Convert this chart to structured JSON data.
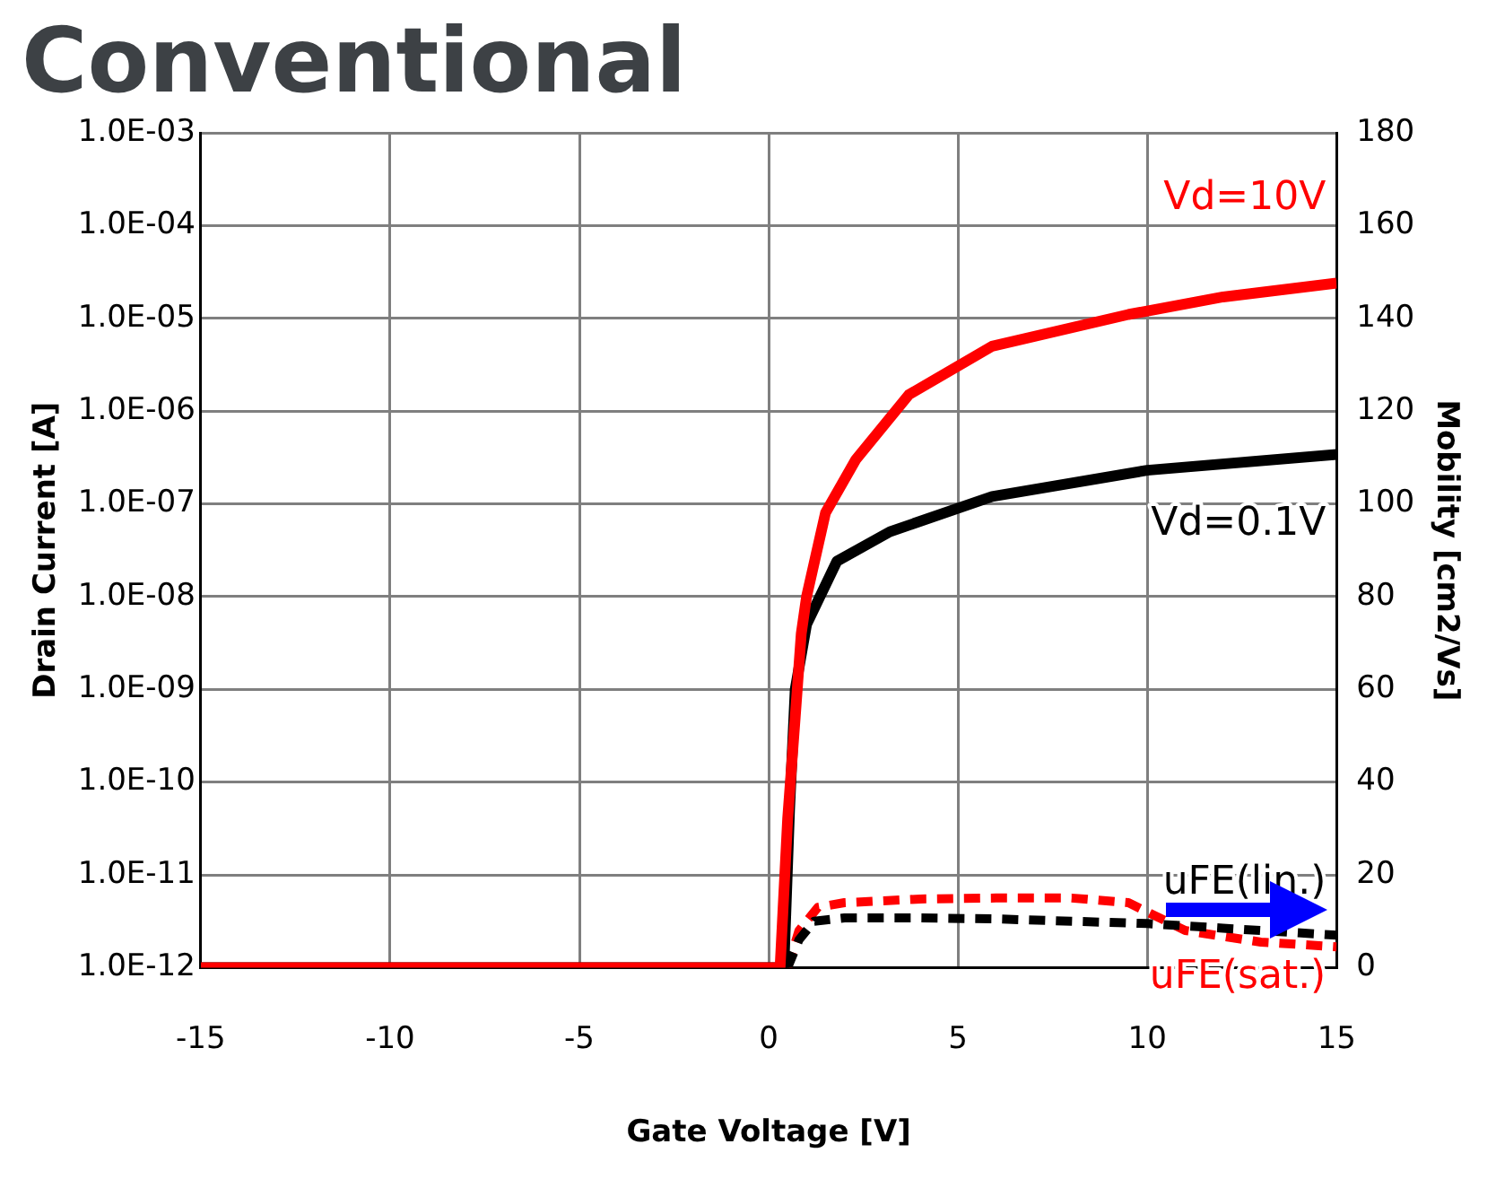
{
  "chart_data": {
    "type": "line",
    "title": "Conventional",
    "xlabel": "Gate Voltage [V]",
    "ylabel": "Drain Current [A]",
    "y2label": "Mobility [cm2/Vs]",
    "xlim": [
      -15,
      15
    ],
    "xticks": [
      -15,
      -10,
      -5,
      0,
      5,
      10,
      15
    ],
    "log": "y",
    "ylim": [
      1e-12,
      0.001
    ],
    "yticks": [
      {
        "value": 1e-12,
        "label": "1.0E-12"
      },
      {
        "value": 1e-11,
        "label": "1.0E-11"
      },
      {
        "value": 1e-10,
        "label": "1.0E-10"
      },
      {
        "value": 1e-09,
        "label": "1.0E-09"
      },
      {
        "value": 1e-08,
        "label": "1.0E-08"
      },
      {
        "value": 1e-07,
        "label": "1.0E-07"
      },
      {
        "value": 1e-06,
        "label": "1.0E-06"
      },
      {
        "value": 1e-05,
        "label": "1.0E-05"
      },
      {
        "value": 0.0001,
        "label": "1.0E-04"
      },
      {
        "value": 0.001,
        "label": "1.0E-03"
      }
    ],
    "y2lim": [
      0,
      180
    ],
    "y2ticks": [
      0,
      20,
      40,
      60,
      80,
      100,
      120,
      140,
      160,
      180
    ],
    "grid": true,
    "legend": false,
    "marker": "none",
    "series": [
      {
        "name": "Vd=10V",
        "color": "#ff0000",
        "line_style": "solid",
        "x": [
          -15,
          0,
          0.3,
          0.5,
          0.7,
          0.86,
          1.0,
          1.5,
          2.3,
          3.7,
          5.9,
          9.5,
          12,
          15
        ],
        "values": [
          1e-12,
          1e-12,
          1e-12,
          4e-11,
          5e-10,
          4e-09,
          1e-08,
          8e-08,
          3e-07,
          1.5e-06,
          5e-06,
          1.1e-05,
          1.7e-05,
          2.4e-05
        ]
      },
      {
        "name": "Vd=0.1V",
        "color": "#000000",
        "line_style": "solid",
        "x": [
          -15,
          0,
          0.4,
          0.55,
          0.7,
          1.0,
          1.8,
          3.2,
          5.9,
          10,
          15
        ],
        "values": [
          1e-12,
          1e-12,
          1e-12,
          5e-11,
          1e-09,
          5e-09,
          2.4e-08,
          5e-08,
          1.2e-07,
          2.3e-07,
          3.4e-07
        ]
      },
      {
        "name": "uFE(lin.)",
        "color": "#000000",
        "line_style": "dashed",
        "axis": "y2",
        "x": [
          0.5,
          0.8,
          1.2,
          2,
          4,
          6,
          8,
          10,
          12,
          15
        ],
        "values": [
          0,
          6,
          10,
          10.7,
          10.7,
          10.5,
          10,
          9.5,
          8.5,
          7
        ]
      },
      {
        "name": "uFE(sat.)",
        "color": "#ff0000",
        "line_style": "dashed",
        "axis": "y2",
        "x": [
          0.5,
          0.8,
          1.3,
          2,
          4,
          6,
          8,
          9.5,
          11,
          13,
          15
        ],
        "values": [
          0,
          8,
          13,
          14,
          14.8,
          15,
          15,
          14,
          8,
          5.5,
          4.5
        ]
      }
    ]
  }
}
